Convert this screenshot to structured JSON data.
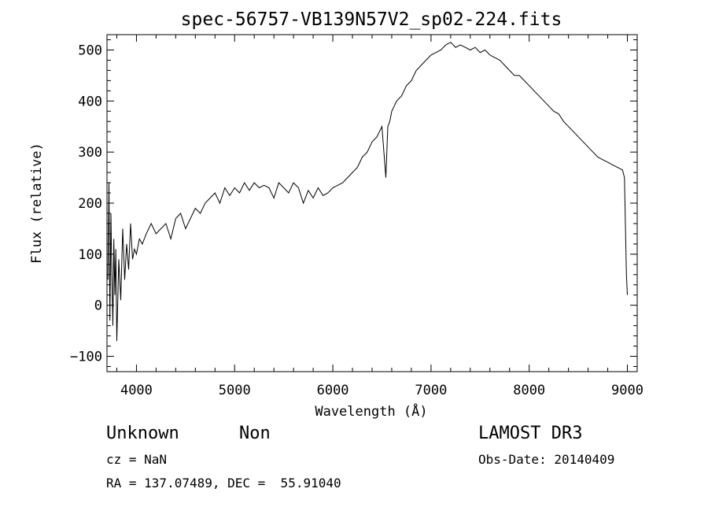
{
  "chart_data": {
    "type": "line",
    "title": "spec-56757-VB139N57V2_sp02-224.fits",
    "xlabel": "Wavelength (Å)",
    "ylabel": "Flux (relative)",
    "xlim": [
      3700,
      9100
    ],
    "ylim": [
      -130,
      530
    ],
    "xticks": [
      4000,
      5000,
      6000,
      7000,
      8000,
      9000
    ],
    "yticks": [
      -100,
      0,
      100,
      200,
      300,
      400,
      500
    ],
    "series": [
      {
        "color": "#000000",
        "x": [
          3710,
          3720,
          3730,
          3740,
          3750,
          3760,
          3770,
          3780,
          3790,
          3800,
          3820,
          3840,
          3860,
          3880,
          3900,
          3920,
          3940,
          3960,
          3980,
          4000,
          4030,
          4060,
          4100,
          4150,
          4200,
          4250,
          4300,
          4350,
          4400,
          4450,
          4500,
          4550,
          4600,
          4650,
          4700,
          4750,
          4800,
          4850,
          4900,
          4950,
          5000,
          5050,
          5100,
          5150,
          5200,
          5250,
          5300,
          5350,
          5400,
          5450,
          5500,
          5550,
          5600,
          5650,
          5700,
          5750,
          5800,
          5850,
          5900,
          5950,
          6000,
          6050,
          6100,
          6150,
          6200,
          6250,
          6300,
          6350,
          6400,
          6450,
          6500,
          6540,
          6560,
          6580,
          6600,
          6650,
          6700,
          6750,
          6800,
          6850,
          6900,
          6950,
          7000,
          7050,
          7100,
          7150,
          7200,
          7250,
          7300,
          7350,
          7400,
          7450,
          7500,
          7550,
          7600,
          7650,
          7700,
          7750,
          7800,
          7850,
          7900,
          7950,
          8000,
          8050,
          8100,
          8150,
          8200,
          8250,
          8300,
          8350,
          8400,
          8450,
          8500,
          8550,
          8600,
          8650,
          8700,
          8750,
          8800,
          8850,
          8900,
          8950,
          8970,
          8990,
          9000
        ],
        "y": [
          50,
          240,
          -30,
          180,
          60,
          -40,
          130,
          20,
          110,
          -70,
          90,
          10,
          150,
          50,
          120,
          70,
          160,
          90,
          110,
          100,
          130,
          120,
          140,
          160,
          140,
          150,
          160,
          130,
          170,
          180,
          150,
          170,
          190,
          180,
          200,
          210,
          220,
          200,
          230,
          215,
          230,
          220,
          240,
          225,
          240,
          230,
          235,
          230,
          210,
          240,
          230,
          220,
          240,
          230,
          200,
          225,
          210,
          230,
          215,
          220,
          230,
          235,
          240,
          250,
          260,
          270,
          290,
          300,
          320,
          330,
          350,
          250,
          350,
          360,
          380,
          400,
          410,
          430,
          440,
          460,
          470,
          480,
          490,
          495,
          500,
          510,
          515,
          505,
          510,
          505,
          500,
          505,
          495,
          500,
          490,
          485,
          480,
          470,
          460,
          450,
          450,
          440,
          430,
          420,
          410,
          400,
          390,
          380,
          375,
          360,
          350,
          340,
          330,
          320,
          310,
          300,
          290,
          285,
          280,
          275,
          270,
          265,
          250,
          60,
          20
        ]
      }
    ]
  },
  "annotations": {
    "object_class": "Unknown",
    "subclass": "Non",
    "survey": "LAMOST DR3",
    "cz": "cz = NaN",
    "obs_date": "Obs-Date: 20140409",
    "coords": "RA = 137.07489, DEC =  55.91040"
  }
}
